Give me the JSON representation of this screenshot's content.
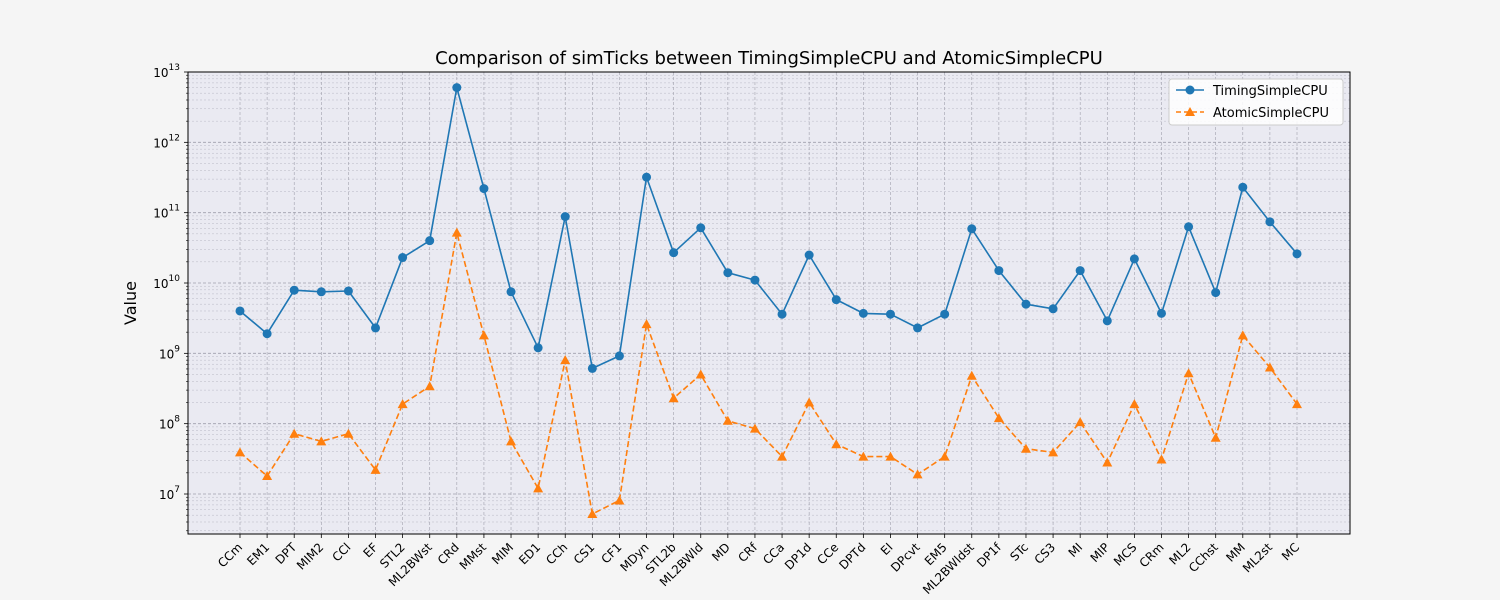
{
  "chart_data": {
    "type": "line",
    "title": "Comparison of simTicks between TimingSimpleCPU and AtomicSimpleCPU",
    "xlabel": "",
    "ylabel": "Value",
    "yscale": "log",
    "ylim": [
      2700000.0,
      10000000000000.0
    ],
    "ytick_values": [
      10000000.0,
      100000000.0,
      1000000000.0,
      10000000000.0,
      100000000000.0,
      1000000000000.0,
      10000000000000.0
    ],
    "ytick_exponents": [
      "7",
      "8",
      "9",
      "10",
      "11",
      "12",
      "13"
    ],
    "ytick_base": "10",
    "grid": true,
    "legend_position": "top-right",
    "categories": [
      "CCm",
      "EM1",
      "DPT",
      "MIM2",
      "CCl",
      "EF",
      "STL2",
      "ML2BWst",
      "CRd",
      "MMst",
      "MIM",
      "ED1",
      "CCh",
      "CS1",
      "CF1",
      "MDyn",
      "STL2b",
      "ML2BWld",
      "MD",
      "CRf",
      "CCa",
      "DP1d",
      "CCe",
      "DPTd",
      "EI",
      "DPcvt",
      "EM5",
      "ML2BWldst",
      "DP1f",
      "STc",
      "CS3",
      "MI",
      "MIP",
      "MCS",
      "CRm",
      "ML2",
      "CChst",
      "MM",
      "ML2st",
      "MC"
    ],
    "series": [
      {
        "name": "TimingSimpleCPU",
        "color": "#1f77b4",
        "marker": "circle",
        "linestyle": "solid",
        "values": [
          4000000000.0,
          1900000000.0,
          7900000000.0,
          7500000000.0,
          7700000000.0,
          2300000000.0,
          23000000000.0,
          40000000000.0,
          6000000000000.0,
          220000000000.0,
          7500000000.0,
          1200000000.0,
          88000000000.0,
          610000000.0,
          920000000.0,
          320000000000.0,
          27000000000.0,
          61000000000.0,
          14000000000.0,
          11000000000.0,
          3600000000.0,
          25000000000.0,
          5800000000.0,
          3700000000.0,
          3600000000.0,
          2300000000.0,
          3600000000.0,
          59000000000.0,
          15000000000.0,
          5000000000.0,
          4300000000.0,
          15000000000.0,
          2900000000.0,
          22000000000.0,
          3700000000.0,
          63000000000.0,
          7300000000.0,
          230000000000.0,
          74000000000.0,
          26000000000.0
        ]
      },
      {
        "name": "AtomicSimpleCPU",
        "color": "#ff7f0e",
        "marker": "triangle",
        "linestyle": "dashed",
        "values": [
          39000000.0,
          18000000.0,
          72000000.0,
          56000000.0,
          72000000.0,
          22000000.0,
          190000000.0,
          340000000.0,
          52000000000.0,
          1800000000.0,
          56000000.0,
          12000000.0,
          800000000.0,
          5200000.0,
          8100000.0,
          2600000000.0,
          230000000.0,
          500000000.0,
          110000000.0,
          85000000.0,
          34000000.0,
          200000000.0,
          51000000.0,
          34000000.0,
          34000000.0,
          19000000.0,
          34000000.0,
          480000000.0,
          120000000.0,
          44000000.0,
          39000000.0,
          105000000.0,
          28000000.0,
          190000000.0,
          31000000.0,
          520000000.0,
          63000000.0,
          1800000000.0,
          630000000.0,
          190000000.0
        ]
      }
    ]
  }
}
